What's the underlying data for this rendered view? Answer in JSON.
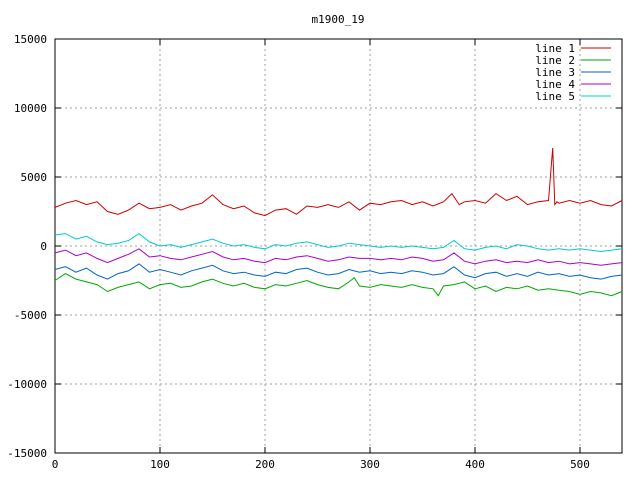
{
  "chart_data": {
    "type": "line",
    "title": "m1900_19",
    "xlabel": "",
    "ylabel": "",
    "xlim": [
      0,
      540
    ],
    "ylim": [
      -15000,
      15000
    ],
    "xticks": [
      0,
      100,
      200,
      300,
      400,
      500
    ],
    "yticks": [
      -15000,
      -10000,
      -5000,
      0,
      5000,
      10000,
      15000
    ],
    "grid": true,
    "legend_position": "top-right",
    "series": [
      {
        "name": "line 1",
        "color": "#cc0000",
        "x": [
          0,
          10,
          20,
          30,
          40,
          50,
          60,
          70,
          80,
          90,
          100,
          110,
          120,
          130,
          140,
          150,
          160,
          170,
          180,
          190,
          200,
          210,
          220,
          230,
          240,
          250,
          260,
          270,
          280,
          290,
          300,
          310,
          320,
          330,
          340,
          350,
          360,
          370,
          378,
          385,
          390,
          400,
          410,
          420,
          430,
          440,
          450,
          460,
          470,
          474,
          476,
          478,
          480,
          490,
          500,
          510,
          520,
          530,
          540
        ],
        "y": [
          2800,
          3100,
          3300,
          3000,
          3200,
          2500,
          2300,
          2600,
          3100,
          2700,
          2800,
          3000,
          2600,
          2900,
          3100,
          3700,
          3000,
          2700,
          2900,
          2400,
          2200,
          2600,
          2700,
          2300,
          2900,
          2800,
          3000,
          2800,
          3200,
          2600,
          3100,
          3000,
          3200,
          3300,
          3000,
          3200,
          2900,
          3200,
          3800,
          3000,
          3200,
          3300,
          3100,
          3800,
          3300,
          3600,
          3000,
          3200,
          3300,
          7100,
          3000,
          3200,
          3100,
          3300,
          3100,
          3300,
          3000,
          2900,
          3300
        ]
      },
      {
        "name": "line 2",
        "color": "#00aa00",
        "x": [
          0,
          10,
          20,
          30,
          40,
          50,
          60,
          70,
          80,
          90,
          100,
          110,
          120,
          130,
          140,
          150,
          160,
          170,
          180,
          190,
          200,
          210,
          220,
          230,
          240,
          250,
          260,
          270,
          280,
          285,
          290,
          300,
          310,
          320,
          330,
          340,
          350,
          360,
          365,
          370,
          380,
          390,
          400,
          410,
          420,
          430,
          440,
          450,
          460,
          470,
          480,
          490,
          500,
          510,
          520,
          530,
          540
        ],
        "y": [
          -2500,
          -2000,
          -2400,
          -2600,
          -2800,
          -3300,
          -3000,
          -2800,
          -2600,
          -3100,
          -2800,
          -2700,
          -3000,
          -2900,
          -2600,
          -2400,
          -2700,
          -2900,
          -2700,
          -3000,
          -3100,
          -2800,
          -2900,
          -2700,
          -2500,
          -2800,
          -3000,
          -3100,
          -2600,
          -2300,
          -2900,
          -3000,
          -2800,
          -2900,
          -3000,
          -2800,
          -3000,
          -3100,
          -3600,
          -2900,
          -2800,
          -2600,
          -3100,
          -2900,
          -3300,
          -3000,
          -3100,
          -2900,
          -3200,
          -3100,
          -3200,
          -3300,
          -3500,
          -3300,
          -3400,
          -3600,
          -3300
        ]
      },
      {
        "name": "line 3",
        "color": "#0066cc",
        "x": [
          0,
          10,
          20,
          30,
          40,
          50,
          60,
          70,
          80,
          90,
          100,
          110,
          120,
          130,
          140,
          150,
          160,
          170,
          180,
          190,
          200,
          210,
          220,
          230,
          240,
          250,
          260,
          270,
          280,
          290,
          300,
          310,
          320,
          330,
          340,
          350,
          360,
          370,
          380,
          390,
          400,
          410,
          420,
          430,
          440,
          450,
          460,
          470,
          480,
          490,
          500,
          510,
          520,
          530,
          540
        ],
        "y": [
          -1700,
          -1500,
          -1900,
          -1600,
          -2100,
          -2400,
          -2000,
          -1800,
          -1300,
          -1900,
          -1700,
          -1900,
          -2100,
          -1800,
          -1600,
          -1400,
          -1800,
          -2000,
          -1900,
          -2100,
          -2200,
          -1900,
          -2000,
          -1700,
          -1600,
          -1900,
          -2100,
          -2000,
          -1700,
          -1900,
          -1800,
          -2000,
          -1900,
          -2000,
          -1800,
          -1900,
          -2100,
          -2000,
          -1500,
          -2100,
          -2300,
          -2000,
          -1900,
          -2200,
          -2000,
          -2200,
          -1900,
          -2100,
          -2000,
          -2200,
          -2100,
          -2300,
          -2400,
          -2200,
          -2100
        ]
      },
      {
        "name": "line 4",
        "color": "#aa00cc",
        "x": [
          0,
          10,
          20,
          30,
          40,
          50,
          60,
          70,
          80,
          90,
          100,
          110,
          120,
          130,
          140,
          150,
          160,
          170,
          180,
          190,
          200,
          210,
          220,
          230,
          240,
          250,
          260,
          270,
          280,
          290,
          300,
          310,
          320,
          330,
          340,
          350,
          360,
          370,
          380,
          390,
          400,
          410,
          420,
          430,
          440,
          450,
          460,
          470,
          480,
          490,
          500,
          510,
          520,
          530,
          540
        ],
        "y": [
          -500,
          -300,
          -700,
          -500,
          -900,
          -1200,
          -900,
          -600,
          -200,
          -800,
          -700,
          -900,
          -1000,
          -800,
          -600,
          -400,
          -800,
          -1000,
          -900,
          -1100,
          -1200,
          -900,
          -1000,
          -800,
          -700,
          -900,
          -1100,
          -1000,
          -800,
          -900,
          -900,
          -1000,
          -900,
          -1000,
          -800,
          -900,
          -1100,
          -1000,
          -500,
          -1100,
          -1300,
          -1100,
          -1000,
          -1200,
          -1100,
          -1200,
          -1000,
          -1200,
          -1100,
          -1300,
          -1200,
          -1300,
          -1400,
          -1300,
          -1200
        ]
      },
      {
        "name": "line 5",
        "color": "#00cccc",
        "x": [
          0,
          10,
          20,
          30,
          40,
          50,
          60,
          70,
          80,
          90,
          100,
          110,
          120,
          130,
          140,
          150,
          160,
          170,
          180,
          190,
          200,
          210,
          220,
          230,
          240,
          250,
          260,
          270,
          280,
          290,
          300,
          310,
          320,
          330,
          340,
          350,
          360,
          370,
          380,
          390,
          400,
          410,
          420,
          430,
          440,
          450,
          460,
          470,
          480,
          490,
          500,
          510,
          520,
          530,
          540
        ],
        "y": [
          800,
          900,
          500,
          700,
          300,
          100,
          200,
          400,
          900,
          300,
          0,
          100,
          -100,
          100,
          300,
          500,
          200,
          0,
          100,
          -100,
          -200,
          100,
          0,
          200,
          300,
          100,
          -100,
          0,
          200,
          100,
          0,
          -100,
          0,
          -100,
          0,
          -100,
          -200,
          -100,
          400,
          -200,
          -300,
          -100,
          0,
          -200,
          100,
          0,
          -200,
          -300,
          -200,
          -300,
          -200,
          -300,
          -400,
          -300,
          -200
        ]
      }
    ]
  }
}
